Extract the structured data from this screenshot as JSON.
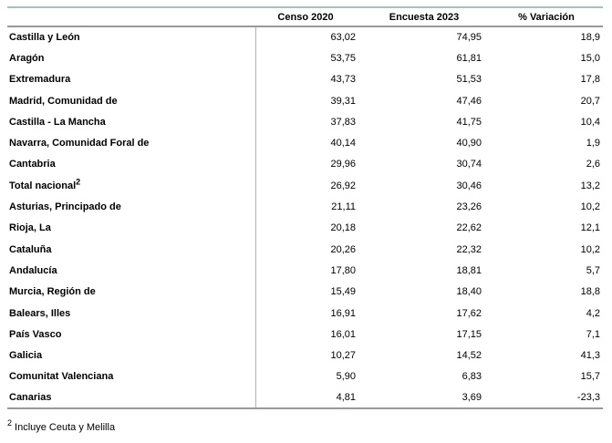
{
  "table": {
    "columns": [
      "",
      "Censo 2020",
      "Encuesta 2023",
      "% Variación"
    ],
    "rows": [
      {
        "region": "Castilla y León",
        "region_sup": "",
        "censo_2020": "63,02",
        "encuesta_2023": "74,95",
        "variacion": "18,9"
      },
      {
        "region": "Aragón",
        "region_sup": "",
        "censo_2020": "53,75",
        "encuesta_2023": "61,81",
        "variacion": "15,0"
      },
      {
        "region": "Extremadura",
        "region_sup": "",
        "censo_2020": "43,73",
        "encuesta_2023": "51,53",
        "variacion": "17,8"
      },
      {
        "region": "Madrid, Comunidad de",
        "region_sup": "",
        "censo_2020": "39,31",
        "encuesta_2023": "47,46",
        "variacion": "20,7"
      },
      {
        "region": "Castilla - La Mancha",
        "region_sup": "",
        "censo_2020": "37,83",
        "encuesta_2023": "41,75",
        "variacion": "10,4"
      },
      {
        "region": "Navarra, Comunidad Foral de",
        "region_sup": "",
        "censo_2020": "40,14",
        "encuesta_2023": "40,90",
        "variacion": "1,9"
      },
      {
        "region": "Cantabria",
        "region_sup": "",
        "censo_2020": "29,96",
        "encuesta_2023": "30,74",
        "variacion": "2,6"
      },
      {
        "region": "Total nacional",
        "region_sup": "2",
        "censo_2020": "26,92",
        "encuesta_2023": "30,46",
        "variacion": "13,2"
      },
      {
        "region": "Asturias, Principado de",
        "region_sup": "",
        "censo_2020": "21,11",
        "encuesta_2023": "23,26",
        "variacion": "10,2"
      },
      {
        "region": "Rioja, La",
        "region_sup": "",
        "censo_2020": "20,18",
        "encuesta_2023": "22,62",
        "variacion": "12,1"
      },
      {
        "region": "Cataluña",
        "region_sup": "",
        "censo_2020": "20,26",
        "encuesta_2023": "22,32",
        "variacion": "10,2"
      },
      {
        "region": "Andalucía",
        "region_sup": "",
        "censo_2020": "17,80",
        "encuesta_2023": "18,81",
        "variacion": "5,7"
      },
      {
        "region": "Murcia, Región de",
        "region_sup": "",
        "censo_2020": "15,49",
        "encuesta_2023": "18,40",
        "variacion": "18,8"
      },
      {
        "region": "Balears, Illes",
        "region_sup": "",
        "censo_2020": "16,91",
        "encuesta_2023": "17,62",
        "variacion": "4,2"
      },
      {
        "region": "País Vasco",
        "region_sup": "",
        "censo_2020": "16,01",
        "encuesta_2023": "17,15",
        "variacion": "7,1"
      },
      {
        "region": "Galicia",
        "region_sup": "",
        "censo_2020": "10,27",
        "encuesta_2023": "14,52",
        "variacion": "41,3"
      },
      {
        "region": "Comunitat Valenciana",
        "region_sup": "",
        "censo_2020": "5,90",
        "encuesta_2023": "6,83",
        "variacion": "15,7"
      },
      {
        "region": "Canarias",
        "region_sup": "",
        "censo_2020": "4,81",
        "encuesta_2023": "3,69",
        "variacion": "-23,3"
      }
    ]
  },
  "footnote": {
    "marker": "2",
    "text": "Incluye Ceuta y Melilla"
  },
  "colors": {
    "top_border": "#a6c0c0",
    "header_rule": "#999999",
    "column_divider": "#b3b3b3",
    "text": "#000000"
  },
  "chart_data": {
    "type": "table",
    "title": "",
    "columns": [
      "",
      "Censo 2020",
      "Encuesta 2023",
      "% Variación"
    ],
    "rows": [
      [
        "Castilla y León",
        63.02,
        74.95,
        18.9
      ],
      [
        "Aragón",
        53.75,
        61.81,
        15.0
      ],
      [
        "Extremadura",
        43.73,
        51.53,
        17.8
      ],
      [
        "Madrid, Comunidad de",
        39.31,
        47.46,
        20.7
      ],
      [
        "Castilla - La Mancha",
        37.83,
        41.75,
        10.4
      ],
      [
        "Navarra, Comunidad Foral de",
        40.14,
        40.9,
        1.9
      ],
      [
        "Cantabria",
        29.96,
        30.74,
        2.6
      ],
      [
        "Total nacional (2)",
        26.92,
        30.46,
        13.2
      ],
      [
        "Asturias, Principado de",
        21.11,
        23.26,
        10.2
      ],
      [
        "Rioja, La",
        20.18,
        22.62,
        12.1
      ],
      [
        "Cataluña",
        20.26,
        22.32,
        10.2
      ],
      [
        "Andalucía",
        17.8,
        18.81,
        5.7
      ],
      [
        "Murcia, Región de",
        15.49,
        18.4,
        18.8
      ],
      [
        "Balears, Illes",
        16.91,
        17.62,
        4.2
      ],
      [
        "País Vasco",
        16.01,
        17.15,
        7.1
      ],
      [
        "Galicia",
        10.27,
        14.52,
        41.3
      ],
      [
        "Comunitat Valenciana",
        5.9,
        6.83,
        15.7
      ],
      [
        "Canarias",
        4.81,
        3.69,
        -23.3
      ]
    ],
    "footnote": "(2) Incluye Ceuta y Melilla"
  }
}
